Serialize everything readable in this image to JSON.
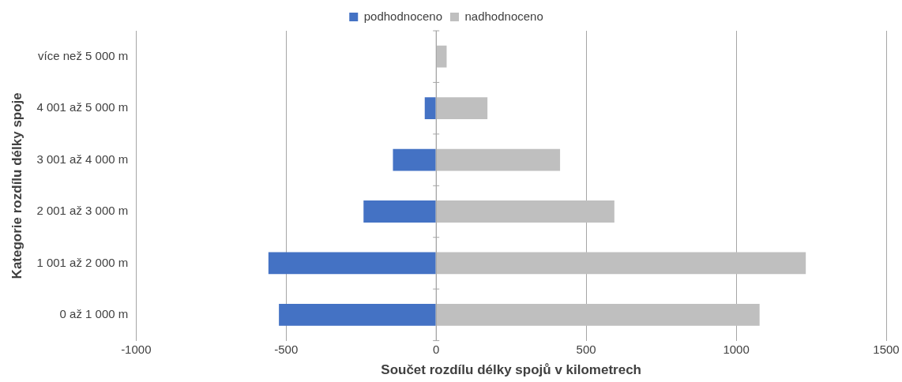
{
  "chart_data": {
    "type": "bar",
    "orientation": "horizontal",
    "stacked": true,
    "xlabel": "Součet rozdílu délky spojů v kilometrech",
    "ylabel": "Kategorie rozdílu délky spoje",
    "categories": [
      "více než 5 000 m",
      "4 001 až 5 000 m",
      "3 001 až 4 000 m",
      "2 001 až 3 000 m",
      "1 001 až 2 000 m",
      "0 až 1 000 m"
    ],
    "series": [
      {
        "name": "podhodnoceno",
        "color": "#4472c4",
        "values": [
          null,
          -38,
          -144,
          -242,
          -559,
          -524
        ]
      },
      {
        "name": "nadhodnoceno",
        "color": "#bfbfbf",
        "values": [
          35,
          171,
          413,
          594,
          1232,
          1078
        ]
      }
    ],
    "xlim": [
      -1000,
      1500
    ],
    "xticks": [
      -1000,
      -500,
      0,
      500,
      1000,
      1500
    ],
    "grid": "x",
    "legend": "top"
  }
}
